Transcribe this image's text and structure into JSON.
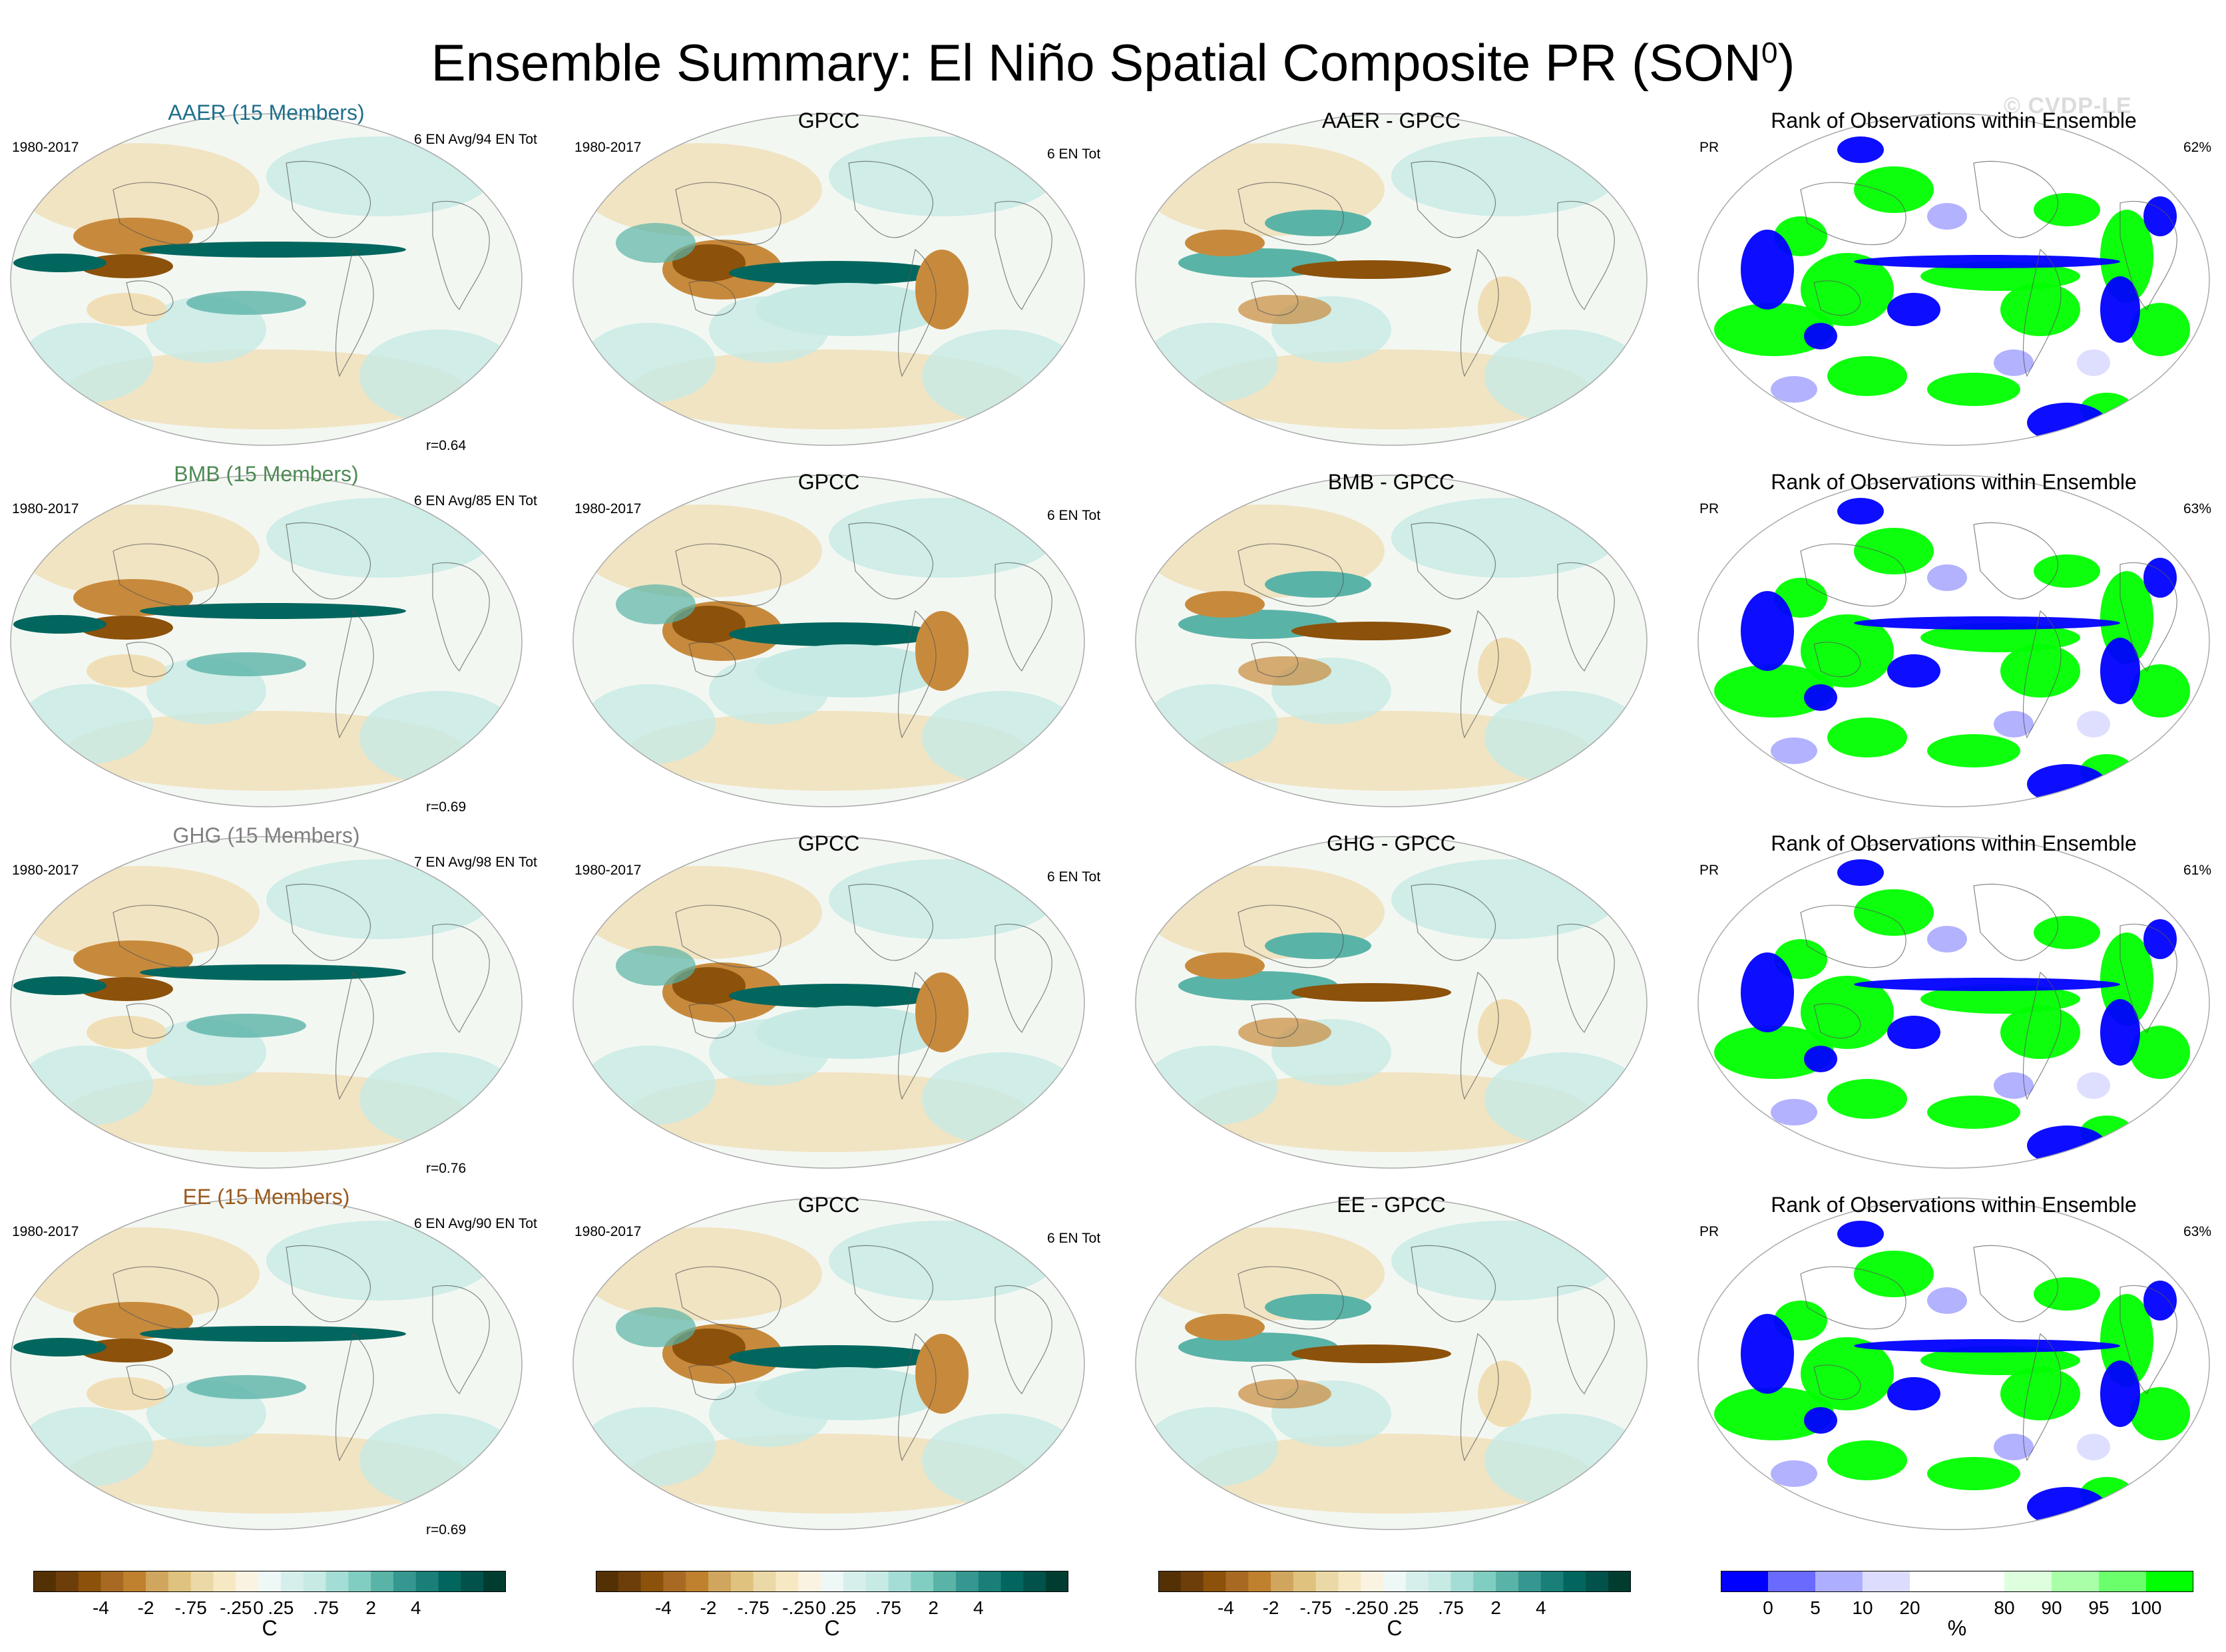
{
  "title": "Ensemble Summary: El Niño Spatial Composite PR (SON",
  "title_superscript": "0",
  "title_close": ")",
  "watermark": "© CVDP-LE",
  "period": "1980-2017",
  "rows": [
    {
      "model": "AAER (15 Members)",
      "model_color": "#1f6f8b",
      "counts": "6 EN Avg/94 EN Tot",
      "r": "r=0.64",
      "obs_title": "GPCC",
      "obs_count": "6 EN Tot",
      "diff_title": "AAER - GPCC",
      "rank_title": "Rank of Observations within Ensemble",
      "rank_var": "PR",
      "rank_pct": "62%"
    },
    {
      "model": "BMB (15 Members)",
      "model_color": "#4f8a55",
      "counts": "6 EN Avg/85 EN Tot",
      "r": "r=0.69",
      "obs_title": "GPCC",
      "obs_count": "6 EN Tot",
      "diff_title": "BMB - GPCC",
      "rank_title": "Rank of Observations within Ensemble",
      "rank_var": "PR",
      "rank_pct": "63%"
    },
    {
      "model": "GHG (15 Members)",
      "model_color": "#808080",
      "counts": "7 EN Avg/98 EN Tot",
      "r": "r=0.76",
      "obs_title": "GPCC",
      "obs_count": "6 EN Tot",
      "diff_title": "GHG - GPCC",
      "rank_title": "Rank of Observations within Ensemble",
      "rank_var": "PR",
      "rank_pct": "61%"
    },
    {
      "model": "EE (15 Members)",
      "model_color": "#9a5a1e",
      "counts": "6 EN Avg/90 EN Tot",
      "r": "r=0.69",
      "obs_title": "GPCC",
      "obs_count": "6 EN Tot",
      "diff_title": "EE - GPCC",
      "rank_title": "Rank of Observations within Ensemble",
      "rank_var": "PR",
      "rank_pct": "63%"
    }
  ],
  "colorbar_pr": {
    "colors": [
      "#543005",
      "#6d3e0a",
      "#8c510a",
      "#a86a23",
      "#bf812d",
      "#d0a55e",
      "#dfc27d",
      "#ead8a7",
      "#f6e8c3",
      "#faf3e2",
      "#eef8f6",
      "#d7efec",
      "#c7eae5",
      "#a4ddd5",
      "#80cdc1",
      "#5ab3a7",
      "#35978f",
      "#1a7f77",
      "#01665e",
      "#00524a",
      "#003c30"
    ],
    "ticks": [
      "-4",
      "-2",
      "-.75",
      "-.25",
      "0",
      ".25",
      ".75",
      "2",
      "4"
    ],
    "unit": "C"
  },
  "colorbar_rank": {
    "colors": [
      "#0000ff",
      "#6a6aff",
      "#aeaeff",
      "#dcdcff",
      "#ffffff",
      "#ffffff",
      "#ddffdd",
      "#a8ffa8",
      "#6cff6c",
      "#00ff00"
    ],
    "ticks": [
      "0",
      "5",
      "10",
      "20",
      "80",
      "90",
      "95",
      "100"
    ],
    "unit": "%"
  }
}
